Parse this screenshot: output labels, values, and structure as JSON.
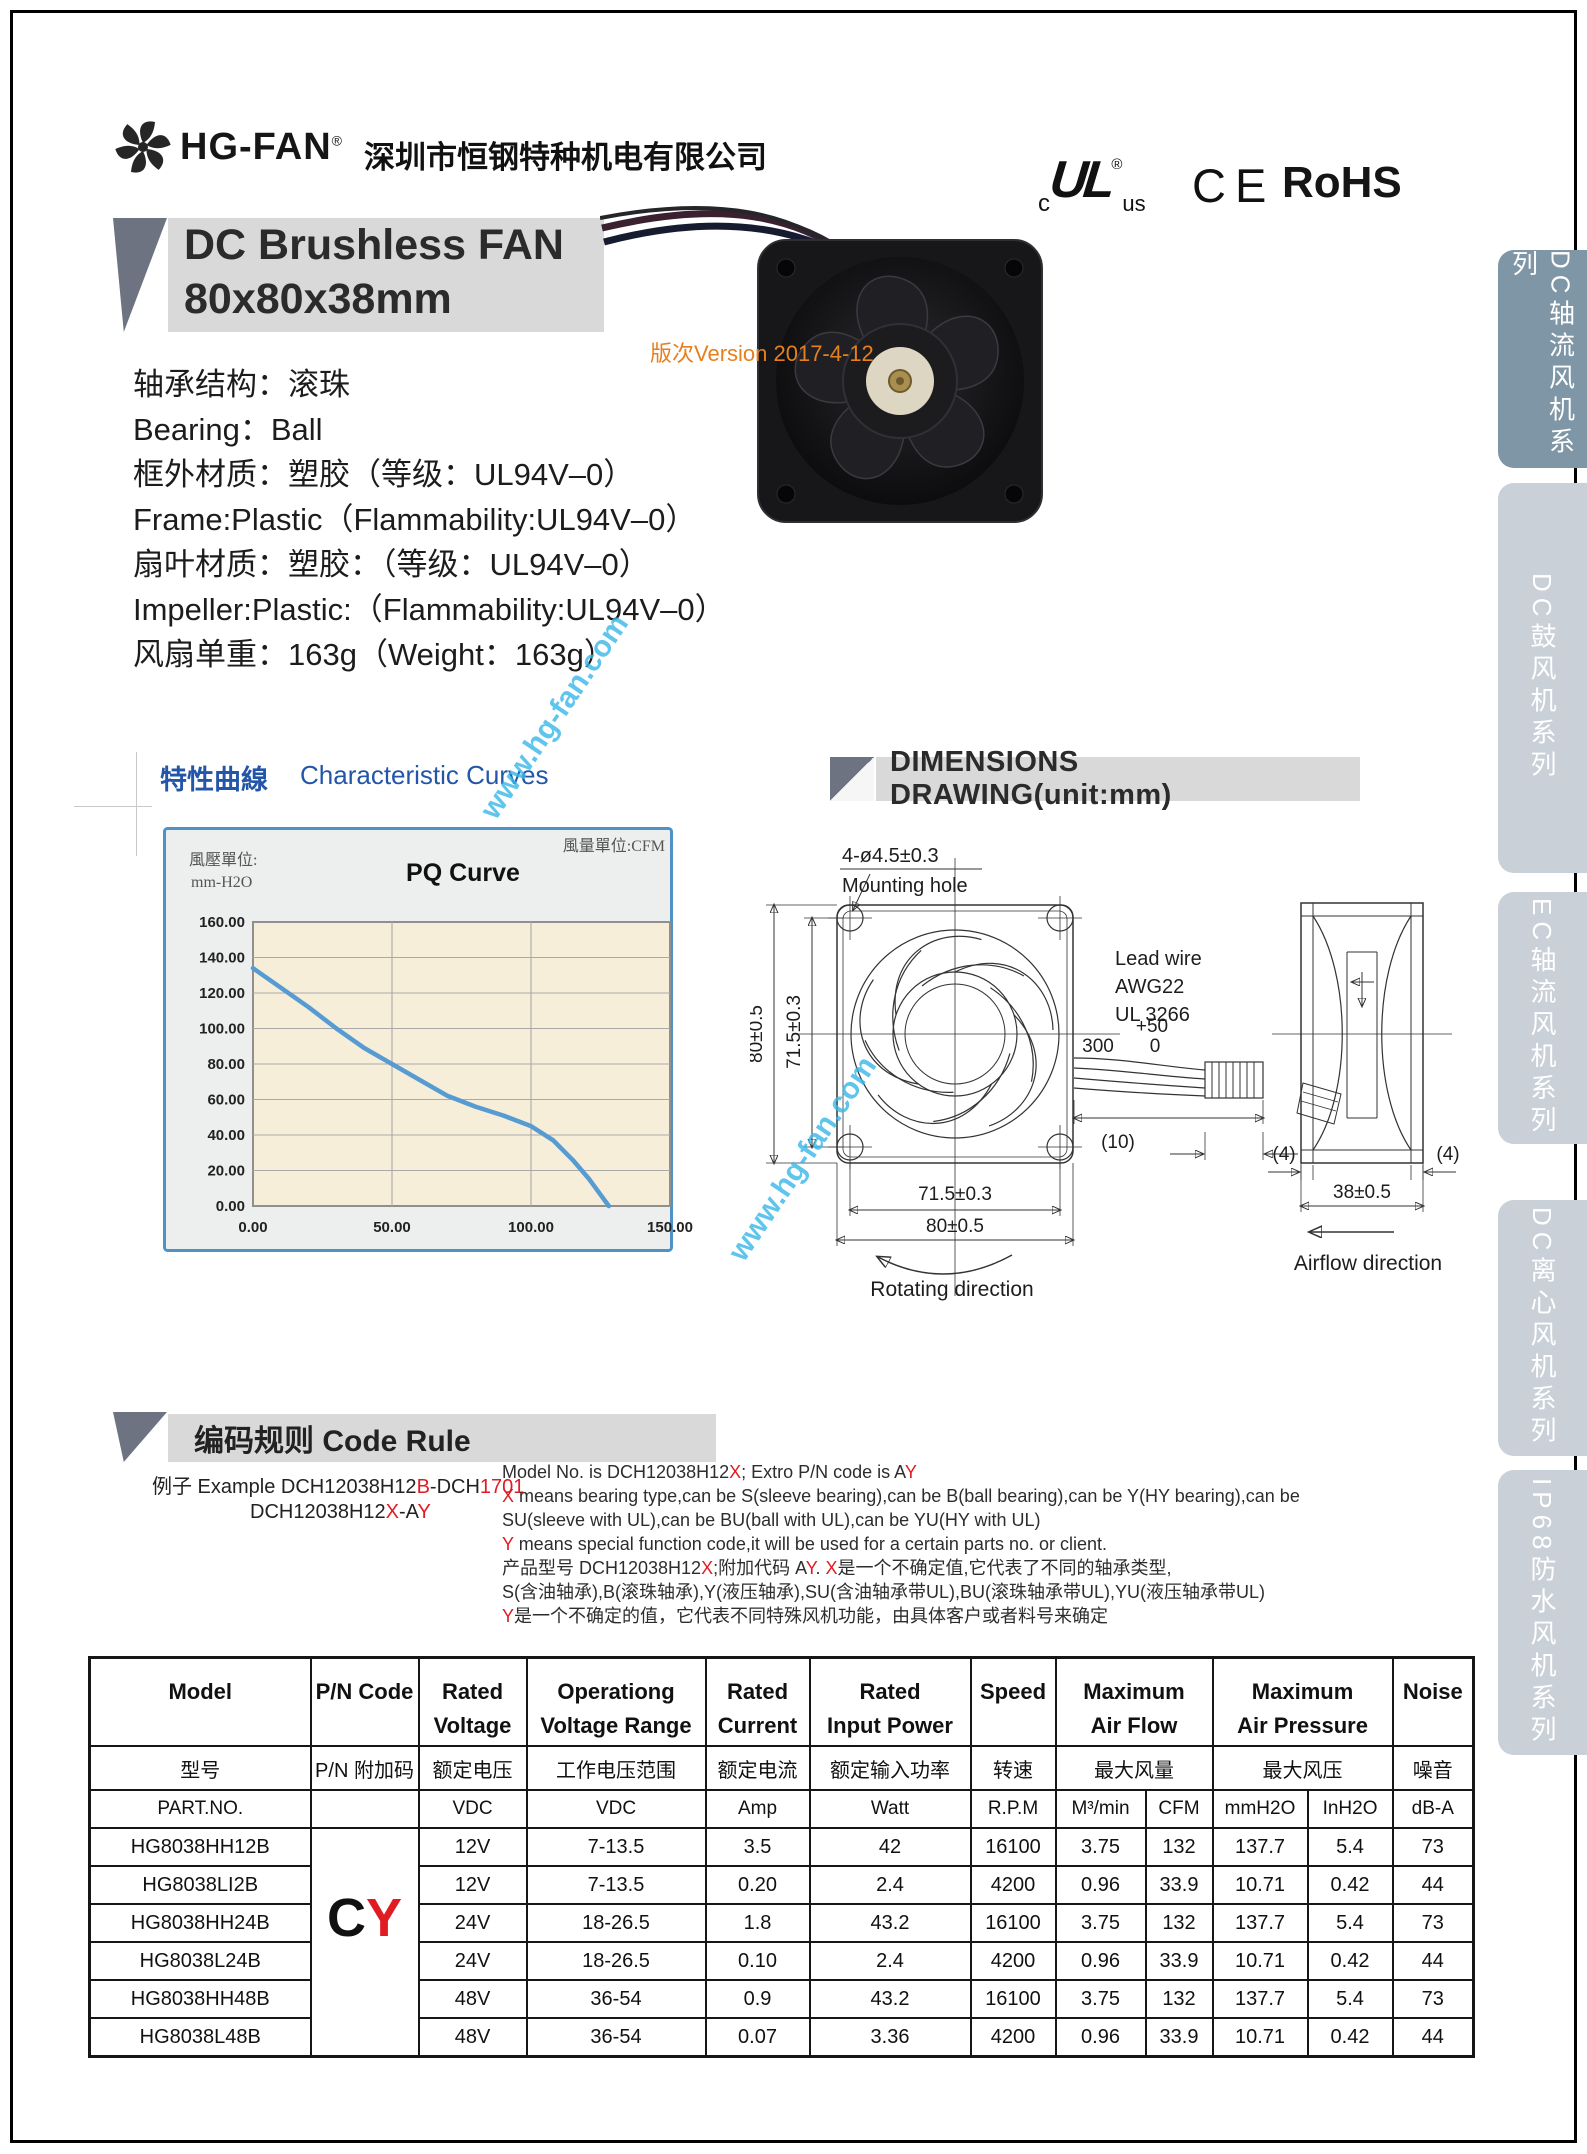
{
  "header": {
    "brand": "HG-FAN",
    "reg": "®",
    "company": "深圳市恒钢特种机电有限公司",
    "ul_c": "c",
    "ul_core": "UL",
    "ul_reg": "®",
    "ul_us": "us",
    "ce": "CE",
    "rohs": "RoHS"
  },
  "title": {
    "line1": "DC Brushless FAN",
    "line2": "80x80x38mm",
    "version": "版次Version 2017-4-12"
  },
  "specs": [
    "轴承结构：滚珠",
    "Bearing：Ball",
    "框外材质：塑胶（等级：UL94V–0）",
    "Frame:Plastic（Flammability:UL94V–0）",
    "扇叶材质：塑胶：（等级：UL94V–0）",
    "Impeller:Plastic:（Flammability:UL94V–0）",
    "风扇单重：163g（Weight：163g）"
  ],
  "curves_heading": {
    "zh": "特性曲線",
    "en": "Characteristic Curves"
  },
  "watermark": "www.hg-fan.com",
  "chart_data": {
    "type": "line",
    "title": "PQ Curve",
    "pressure_unit_label": "風壓單位:",
    "pressure_unit": "mm-H2O",
    "flow_unit_label": "風量單位:CFM",
    "xlabel": "",
    "ylabel": "",
    "xlim": [
      0,
      150
    ],
    "ylim": [
      0,
      160
    ],
    "x_ticks": [
      "0.00",
      "50.00",
      "100.00",
      "150.00"
    ],
    "x_tick_values": [
      0,
      50,
      100,
      150
    ],
    "x_grid": [
      50,
      100
    ],
    "y_ticks": [
      "0.00",
      "20.00",
      "40.00",
      "60.00",
      "80.00",
      "100.00",
      "120.00",
      "140.00",
      "160.00"
    ],
    "curve_color": "#579bd3",
    "points": [
      [
        0,
        134
      ],
      [
        10,
        123
      ],
      [
        20,
        112
      ],
      [
        30,
        100
      ],
      [
        40,
        89
      ],
      [
        50,
        80
      ],
      [
        60,
        71
      ],
      [
        70,
        62
      ],
      [
        80,
        56
      ],
      [
        90,
        51
      ],
      [
        100,
        45
      ],
      [
        108,
        37
      ],
      [
        115,
        26
      ],
      [
        121,
        15
      ],
      [
        128,
        0
      ]
    ]
  },
  "dimensions": {
    "heading": "DIMENSIONS DRAWING(unit:mm)",
    "mounting_dim": "4-ø4.5±0.3",
    "mounting_label": "Mounting hole",
    "lead_wire_1": "Lead wire",
    "lead_wire_2": "AWG22",
    "lead_wire_3": "UL 3266",
    "len_plus": "+50",
    "len_main": "300",
    "len_zero": "0",
    "strip_len": "(10)",
    "dim_left_outer": "80±0.5",
    "dim_left_inner": "71.5±0.3",
    "dim_bottom_inner": "71.5±0.3",
    "dim_bottom_outer": "80±0.5",
    "rotating_label": "Rotating direction",
    "flange_left": "(4)",
    "flange_right": "(4)",
    "dim_depth": "38±0.5",
    "airflow_label": "Airflow direction"
  },
  "code_rule": {
    "heading": "编码规则 Code Rule",
    "example_line1": [
      {
        "t": "例子  Example DCH12038H12"
      },
      {
        "t": "B",
        "r": true
      },
      {
        "t": "-DCH"
      },
      {
        "t": "1701",
        "r": true
      }
    ],
    "example_line2": [
      {
        "t": "DCH12038H12"
      },
      {
        "t": "X",
        "r": true
      },
      {
        "t": "-A"
      },
      {
        "t": "Y",
        "r": true
      }
    ],
    "paragraph": [
      [
        {
          "t": "Model No. is DCH12038H12"
        },
        {
          "t": "X",
          "r": true
        },
        {
          "t": "; Extro P/N code  is  A"
        },
        {
          "t": "Y",
          "r": true
        }
      ],
      [
        {
          "t": "X",
          "r": true
        },
        {
          "t": " means bearing type,can be S(sleeve bearing),can be B(ball bearing),can be Y(HY bearing),can be"
        }
      ],
      [
        {
          "t": "SU(sleeve with UL),can be BU(ball with UL),can be YU(HY with UL)"
        }
      ],
      [
        {
          "t": "Y",
          "r": true
        },
        {
          "t": " means special function code,it will be used for a certain parts no. or client."
        }
      ],
      [
        {
          "t": "产品型号 DCH12038H12"
        },
        {
          "t": "X",
          "r": true
        },
        {
          "t": ";附加代码 A"
        },
        {
          "t": "Y",
          "r": true
        },
        {
          "t": ". "
        },
        {
          "t": "X",
          "r": true
        },
        {
          "t": "是一个不确定值,它代表了不同的轴承类型,"
        }
      ],
      [
        {
          "t": "S(含油轴承),B(滚珠轴承),Y(液压轴承),SU(含油轴承带UL),BU(滚珠轴承带UL),YU(液压轴承带UL)"
        }
      ],
      [
        {
          "t": "Y",
          "r": true
        },
        {
          "t": "是一个不确定的值，它代表不同特殊风机功能，由具体客户或者料号来确定"
        }
      ]
    ]
  },
  "table": {
    "en_headers": [
      "Model",
      "P/N Code",
      "Rated|Voltage",
      "Operationg|Voltage Range",
      "Rated|Current",
      "Rated|Input Power",
      "Speed",
      "Maximum|Air Flow",
      "Maximum|Air Pressure",
      "Noise"
    ],
    "zh_headers": [
      "型号",
      "P/N 附加码",
      "额定电压",
      "工作电压范围",
      "额定电流",
      "额定输入功率",
      "转速",
      "最大风量",
      "最大风压",
      "噪音"
    ],
    "unit_row": [
      "PART.NO.",
      "",
      "VDC",
      "VDC",
      "Amp",
      "Watt",
      "R.P.M",
      "M³/min",
      "CFM",
      "mmH2O",
      "InH2O",
      "dB-A"
    ],
    "pn_black": "C",
    "pn_red": "Y",
    "rows": [
      [
        "HG8038HH12B",
        "12V",
        "7-13.5",
        "3.5",
        "42",
        "16100",
        "3.75",
        "132",
        "137.7",
        "5.4",
        "73"
      ],
      [
        "HG8038LI2B",
        "12V",
        "7-13.5",
        "0.20",
        "2.4",
        "4200",
        "0.96",
        "33.9",
        "10.71",
        "0.42",
        "44"
      ],
      [
        "HG8038HH24B",
        "24V",
        "18-26.5",
        "1.8",
        "43.2",
        "16100",
        "3.75",
        "132",
        "137.7",
        "5.4",
        "73"
      ],
      [
        "HG8038L24B",
        "24V",
        "18-26.5",
        "0.10",
        "2.4",
        "4200",
        "0.96",
        "33.9",
        "10.71",
        "0.42",
        "44"
      ],
      [
        "HG8038HH48B",
        "48V",
        "36-54",
        "0.9",
        "43.2",
        "16100",
        "3.75",
        "132",
        "137.7",
        "5.4",
        "73"
      ],
      [
        "HG8038L48B",
        "48V",
        "36-54",
        "0.07",
        "3.36",
        "4200",
        "0.96",
        "33.9",
        "10.71",
        "0.42",
        "44"
      ]
    ]
  },
  "sidebar": {
    "tabs": [
      {
        "label": "DC轴流风机系列",
        "active": true
      },
      {
        "label": "DC鼓风机系列",
        "active": false
      },
      {
        "label": "EC轴流风机系列",
        "active": false
      },
      {
        "label": "DC离心风机系列",
        "active": false
      },
      {
        "label": "IP68防水风机系列",
        "active": false
      }
    ]
  }
}
